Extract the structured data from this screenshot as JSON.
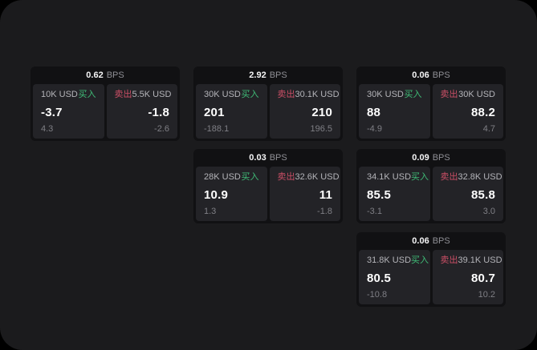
{
  "labels": {
    "bps_unit": "BPS",
    "buy": "买入",
    "sell": "卖出"
  },
  "colors": {
    "window_bg": "#1b1b1d",
    "card_bg": "#111113",
    "panel_bg": "#232327",
    "buy_green": "#3fbc77",
    "sell_red": "#cb4f66"
  },
  "cards": [
    {
      "grid": {
        "row": 0,
        "col": 0
      },
      "bps": "0.62",
      "buy": {
        "amount": "10K USD",
        "value": "-3.7",
        "sub": "4.3"
      },
      "sell": {
        "amount": "5.5K USD",
        "value": "-1.8",
        "sub": "-2.6"
      }
    },
    {
      "grid": {
        "row": 0,
        "col": 1
      },
      "bps": "2.92",
      "buy": {
        "amount": "30K USD",
        "value": "201",
        "sub": "-188.1"
      },
      "sell": {
        "amount": "30.1K USD",
        "value": "210",
        "sub": "196.5"
      }
    },
    {
      "grid": {
        "row": 0,
        "col": 2
      },
      "bps": "0.06",
      "buy": {
        "amount": "30K USD",
        "value": "88",
        "sub": "-4.9"
      },
      "sell": {
        "amount": "30K USD",
        "value": "88.2",
        "sub": "4.7"
      }
    },
    {
      "grid": {
        "row": 1,
        "col": 1
      },
      "bps": "0.03",
      "buy": {
        "amount": "28K USD",
        "value": "10.9",
        "sub": "1.3"
      },
      "sell": {
        "amount": "32.6K USD",
        "value": "11",
        "sub": "-1.8"
      }
    },
    {
      "grid": {
        "row": 1,
        "col": 2
      },
      "bps": "0.09",
      "buy": {
        "amount": "34.1K USD",
        "value": "85.5",
        "sub": "-3.1"
      },
      "sell": {
        "amount": "32.8K USD",
        "value": "85.8",
        "sub": "3.0"
      }
    },
    {
      "grid": {
        "row": 2,
        "col": 2
      },
      "bps": "0.06",
      "buy": {
        "amount": "31.8K USD",
        "value": "80.5",
        "sub": "-10.8"
      },
      "sell": {
        "amount": "39.1K USD",
        "value": "80.7",
        "sub": "10.2"
      }
    }
  ]
}
